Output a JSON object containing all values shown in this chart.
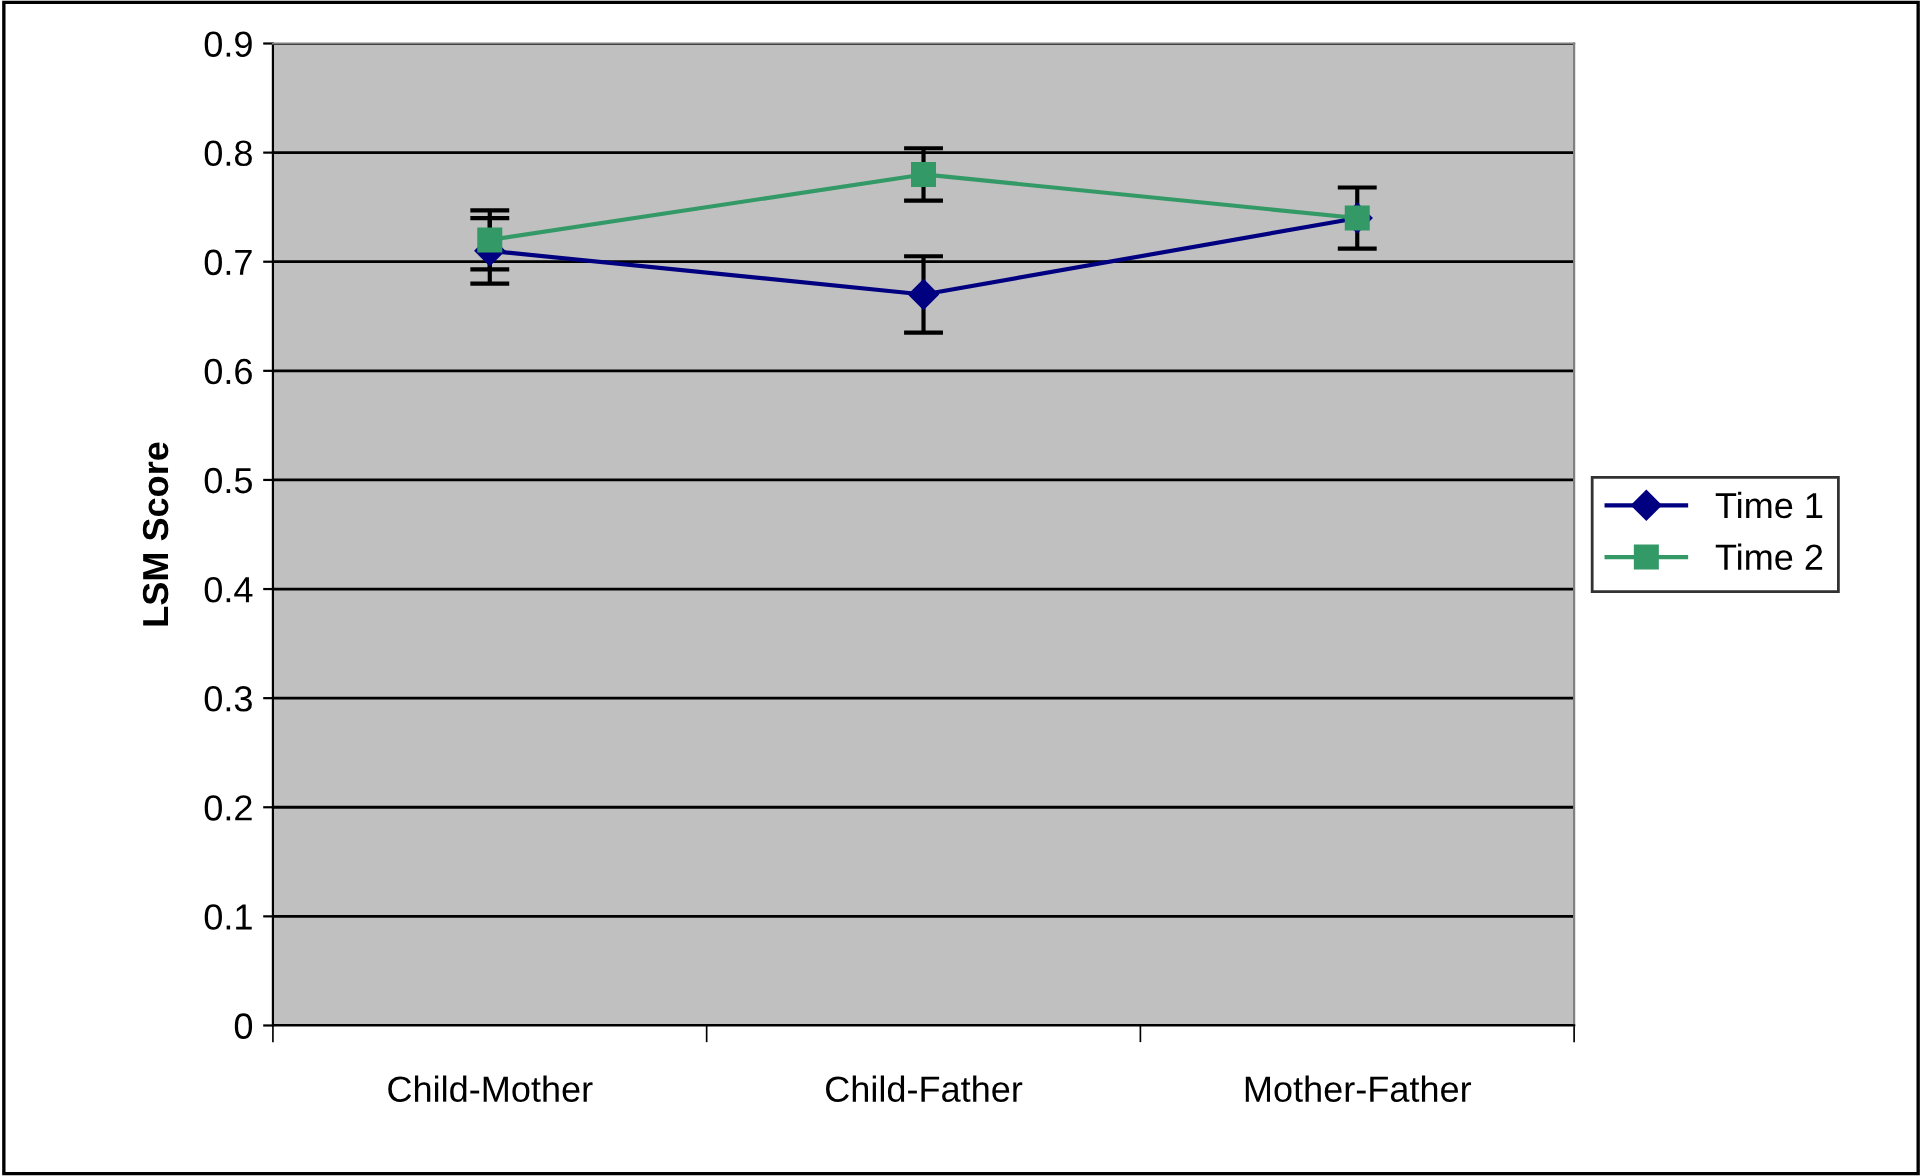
{
  "chart_data": {
    "type": "line",
    "ylabel": "LSM Score",
    "categories": [
      "Child-Mother",
      "Child-Father",
      "Mother-Father"
    ],
    "series": [
      {
        "name": "Time 1",
        "color": "#000080",
        "values": [
          0.71,
          0.67,
          0.74
        ],
        "errors": [
          0.03,
          0.035,
          null
        ],
        "marker": "diamond"
      },
      {
        "name": "Time 2",
        "color": "#339966",
        "values": [
          0.72,
          0.78,
          0.74
        ],
        "errors": [
          0.027,
          0.024,
          0.028
        ],
        "marker": "square"
      }
    ],
    "ylim": [
      0,
      0.9
    ],
    "yticks": [
      0,
      0.1,
      0.2,
      0.3,
      0.4,
      0.5,
      0.6,
      0.7,
      0.8,
      0.9
    ],
    "grid": "y",
    "legend": "right",
    "line_style": "solid"
  }
}
